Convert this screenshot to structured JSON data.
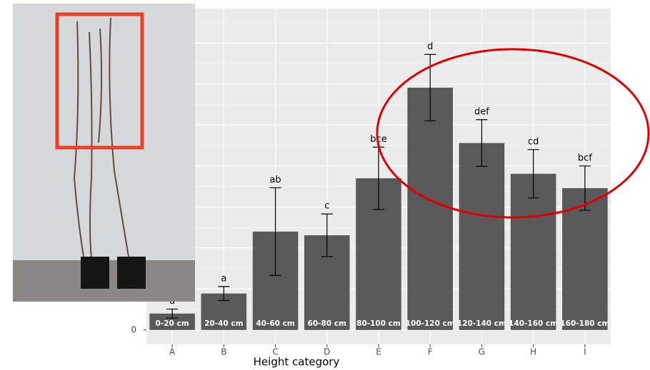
{
  "chart_data": {
    "type": "bar",
    "x_label": "Height category",
    "categories": [
      "A",
      "B",
      "C",
      "D",
      "E",
      "F",
      "G",
      "H",
      "I"
    ],
    "bar_labels": [
      "0-20 cm",
      "20-40 cm",
      "40-60 cm",
      "60-80 cm",
      "80-100 cm",
      "100-120 cm",
      "120-140 cm",
      "140-160 cm",
      "160-180 cm"
    ],
    "values": [
      0.4,
      0.89,
      2.4,
      2.31,
      3.7,
      5.91,
      4.56,
      3.81,
      3.46
    ],
    "errors": [
      0.11,
      0.17,
      1.07,
      0.52,
      0.76,
      0.81,
      0.57,
      0.59,
      0.54
    ],
    "annotations": [
      "a",
      "a",
      "ab",
      "c",
      "bce",
      "d",
      "def",
      "cd",
      "bcf"
    ],
    "color": "#595959",
    "ylim": [
      -0.35,
      7.84
    ],
    "yticks": [
      0
    ],
    "grid": true
  }
}
